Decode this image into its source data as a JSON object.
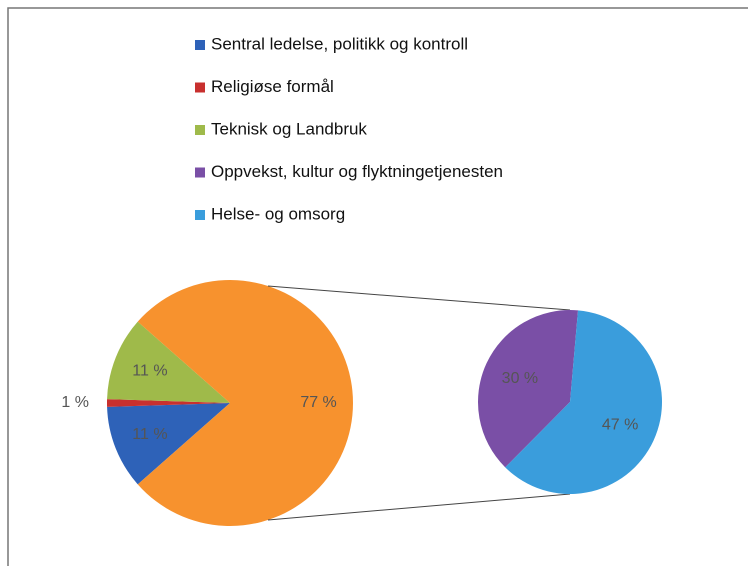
{
  "chart_data": {
    "type": "pie_of_pie",
    "categories": [
      "Sentral ledelse, politikk og kontroll",
      "Religiøse formål",
      "Teknisk og Landbruk",
      "Oppvekst, kultur og flyktningetjenesten",
      "Helse- og omsorg"
    ],
    "values": [
      11,
      1,
      11,
      30,
      47
    ],
    "value_labels": [
      "11 %",
      "1 %",
      "11 %",
      "30 %",
      "47 %"
    ],
    "colors": [
      "#2e62b8",
      "#c8302e",
      "#9fba4a",
      "#7a4fa6",
      "#3a9ddc"
    ],
    "other": {
      "value": 77,
      "value_label": "77 %",
      "color": "#f7922e"
    },
    "secondary_count": 2,
    "legend": "top"
  }
}
